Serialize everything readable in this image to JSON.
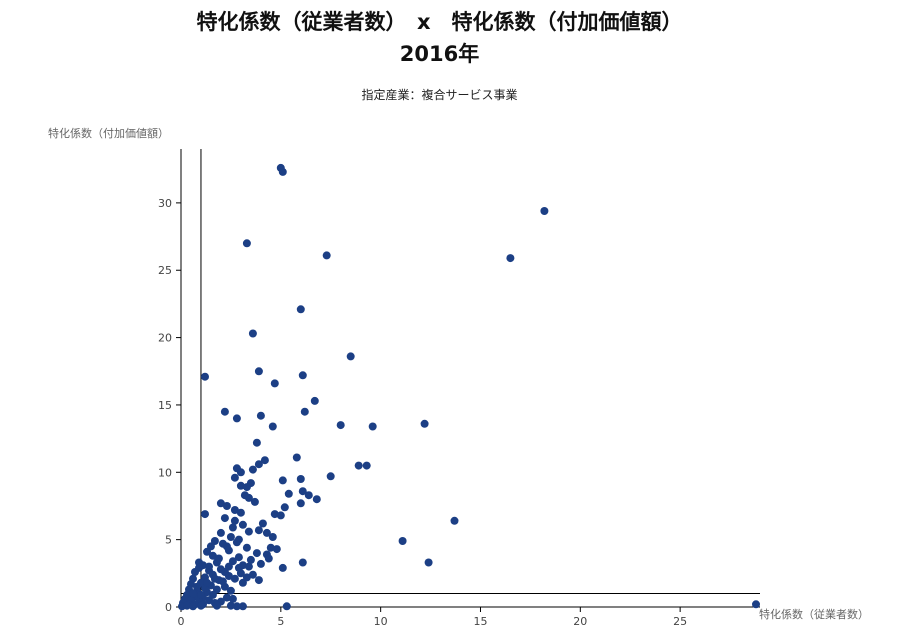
{
  "header": {
    "title_line1": "特化係数（従業者数）　x　特化係数（付加価値額）",
    "title_line2": "2016年",
    "subtitle": "指定産業：複合サービス事業"
  },
  "colors": {
    "point": "#1c3f85",
    "axis": "#000000",
    "reference_line": "#000000"
  },
  "chart_data": {
    "type": "scatter",
    "xlabel": "特化係数（従業者数）",
    "ylabel": "特化係数（付加価値額）",
    "xlim": [
      0,
      29
    ],
    "ylim": [
      0,
      34
    ],
    "x_ticks": [
      0,
      5,
      10,
      15,
      20,
      25
    ],
    "y_ticks": [
      0,
      5,
      10,
      15,
      20,
      25,
      30
    ],
    "reference_lines": {
      "x": 1,
      "y": 1
    },
    "grid": false,
    "points": [
      [
        5.0,
        32.6
      ],
      [
        5.1,
        32.3
      ],
      [
        18.2,
        29.4
      ],
      [
        3.3,
        27.0
      ],
      [
        7.3,
        26.1
      ],
      [
        16.5,
        25.9
      ],
      [
        6.0,
        22.1
      ],
      [
        3.6,
        20.3
      ],
      [
        8.5,
        18.6
      ],
      [
        1.2,
        17.1
      ],
      [
        3.9,
        17.5
      ],
      [
        6.1,
        17.2
      ],
      [
        4.7,
        16.6
      ],
      [
        6.7,
        15.3
      ],
      [
        2.2,
        14.5
      ],
      [
        4.0,
        14.2
      ],
      [
        6.2,
        14.5
      ],
      [
        2.8,
        14.0
      ],
      [
        8.0,
        13.5
      ],
      [
        9.6,
        13.4
      ],
      [
        12.2,
        13.6
      ],
      [
        4.6,
        13.4
      ],
      [
        3.8,
        12.2
      ],
      [
        5.8,
        11.1
      ],
      [
        4.2,
        10.9
      ],
      [
        3.9,
        10.6
      ],
      [
        2.8,
        10.3
      ],
      [
        3.0,
        10.0
      ],
      [
        8.9,
        10.5
      ],
      [
        9.3,
        10.5
      ],
      [
        3.6,
        10.2
      ],
      [
        2.7,
        9.6
      ],
      [
        6.0,
        9.5
      ],
      [
        7.5,
        9.7
      ],
      [
        5.1,
        9.4
      ],
      [
        3.5,
        9.2
      ],
      [
        3.0,
        9.0
      ],
      [
        3.3,
        8.9
      ],
      [
        6.1,
        8.6
      ],
      [
        5.4,
        8.4
      ],
      [
        3.2,
        8.3
      ],
      [
        3.4,
        8.1
      ],
      [
        6.4,
        8.3
      ],
      [
        6.8,
        8.0
      ],
      [
        3.7,
        7.8
      ],
      [
        6.0,
        7.7
      ],
      [
        2.0,
        7.7
      ],
      [
        2.3,
        7.5
      ],
      [
        5.2,
        7.4
      ],
      [
        2.7,
        7.2
      ],
      [
        3.0,
        7.0
      ],
      [
        4.7,
        6.9
      ],
      [
        5.0,
        6.8
      ],
      [
        1.2,
        6.9
      ],
      [
        2.2,
        6.6
      ],
      [
        2.7,
        6.4
      ],
      [
        4.1,
        6.2
      ],
      [
        3.1,
        6.1
      ],
      [
        13.7,
        6.4
      ],
      [
        2.6,
        5.9
      ],
      [
        2.0,
        5.5
      ],
      [
        3.4,
        5.6
      ],
      [
        3.9,
        5.7
      ],
      [
        4.3,
        5.5
      ],
      [
        2.5,
        5.2
      ],
      [
        2.9,
        5.0
      ],
      [
        1.7,
        4.9
      ],
      [
        4.6,
        5.2
      ],
      [
        11.1,
        4.9
      ],
      [
        1.5,
        4.5
      ],
      [
        2.1,
        4.7
      ],
      [
        3.3,
        4.4
      ],
      [
        4.5,
        4.4
      ],
      [
        4.8,
        4.3
      ],
      [
        1.3,
        4.1
      ],
      [
        2.4,
        4.2
      ],
      [
        3.8,
        4.0
      ],
      [
        4.3,
        3.9
      ],
      [
        0.9,
        3.3
      ],
      [
        1.6,
        3.8
      ],
      [
        2.9,
        3.7
      ],
      [
        3.5,
        3.5
      ],
      [
        6.1,
        3.3
      ],
      [
        12.4,
        3.3
      ],
      [
        1.1,
        3.1
      ],
      [
        1.8,
        3.3
      ],
      [
        2.4,
        3.0
      ],
      [
        3.1,
        3.1
      ],
      [
        4.0,
        3.2
      ],
      [
        5.1,
        2.9
      ],
      [
        0.7,
        2.6
      ],
      [
        1.4,
        2.7
      ],
      [
        2.2,
        2.6
      ],
      [
        3.0,
        2.5
      ],
      [
        3.6,
        2.4
      ],
      [
        0.6,
        2.1
      ],
      [
        1.2,
        2.2
      ],
      [
        1.9,
        2.0
      ],
      [
        2.7,
        2.1
      ],
      [
        3.9,
        2.0
      ],
      [
        0.5,
        1.7
      ],
      [
        1.0,
        1.8
      ],
      [
        1.5,
        1.6
      ],
      [
        2.2,
        1.5
      ],
      [
        3.1,
        1.8
      ],
      [
        0.4,
        1.3
      ],
      [
        0.8,
        1.2
      ],
      [
        1.3,
        1.1
      ],
      [
        1.8,
        1.3
      ],
      [
        2.5,
        1.2
      ],
      [
        0.3,
        0.9
      ],
      [
        0.7,
        0.8
      ],
      [
        1.1,
        0.7
      ],
      [
        1.6,
        0.9
      ],
      [
        2.3,
        0.7
      ],
      [
        0.2,
        0.6
      ],
      [
        0.5,
        0.5
      ],
      [
        0.9,
        0.4
      ],
      [
        1.4,
        0.5
      ],
      [
        2.0,
        0.4
      ],
      [
        2.6,
        0.6
      ],
      [
        0.1,
        0.3
      ],
      [
        0.4,
        0.2
      ],
      [
        0.7,
        0.2
      ],
      [
        1.1,
        0.2
      ],
      [
        1.7,
        0.3
      ],
      [
        0.05,
        0.05
      ],
      [
        0.3,
        0.1
      ],
      [
        0.6,
        0.05
      ],
      [
        1.0,
        0.1
      ],
      [
        1.8,
        0.1
      ],
      [
        2.5,
        0.1
      ],
      [
        2.8,
        0.05
      ],
      [
        3.1,
        0.05
      ],
      [
        5.3,
        0.05
      ],
      [
        28.8,
        0.2
      ],
      [
        0.8,
        1.5
      ],
      [
        1.2,
        1.4
      ],
      [
        1.6,
        2.4
      ],
      [
        2.0,
        2.8
      ],
      [
        2.6,
        3.4
      ],
      [
        3.3,
        2.2
      ],
      [
        0.9,
        2.9
      ],
      [
        1.9,
        3.6
      ],
      [
        2.3,
        4.5
      ],
      [
        2.8,
        4.8
      ],
      [
        1.4,
        3.0
      ],
      [
        1.7,
        2.1
      ],
      [
        2.1,
        1.9
      ],
      [
        2.9,
        2.9
      ],
      [
        3.4,
        3.0
      ],
      [
        4.4,
        3.6
      ],
      [
        0.6,
        1.0
      ],
      [
        1.0,
        0.9
      ],
      [
        1.3,
        1.8
      ],
      [
        2.4,
        2.3
      ]
    ]
  }
}
